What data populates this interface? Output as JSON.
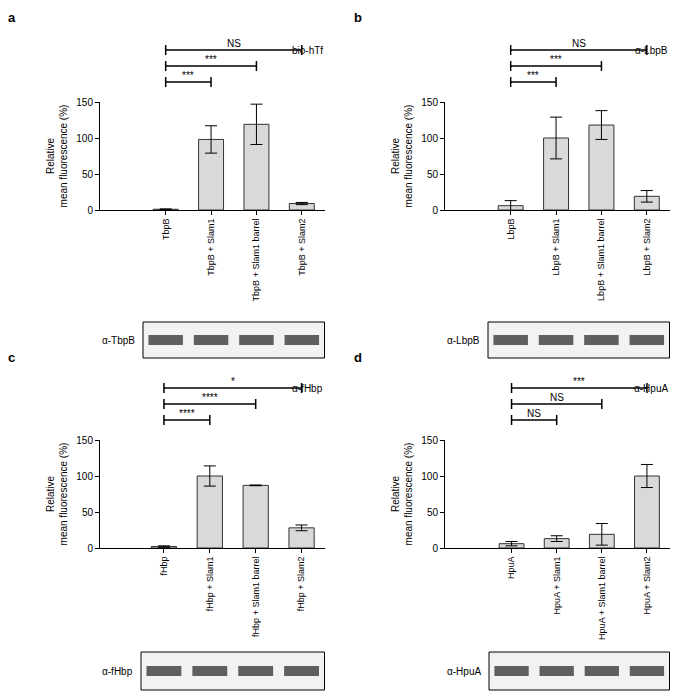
{
  "chart_data": [
    {
      "type": "bar",
      "panel": "a",
      "annotation": "bio-hTf",
      "categories": [
        "TbpB",
        "TbpB + Slam1",
        "TbpB + Slam1 barrel",
        "TbpB + Slam2"
      ],
      "values": [
        1,
        98,
        119,
        9
      ],
      "errors": [
        0.5,
        19,
        28,
        1.5
      ],
      "color": "#d9d9d9",
      "ylim": [
        0,
        150
      ],
      "yticks": [
        0,
        50,
        100,
        150
      ],
      "y_label_lines": [
        "Relative",
        "mean fluorescence (%)"
      ],
      "significance": [
        {
          "from": 0,
          "to": 1,
          "label": "***"
        },
        {
          "from": 0,
          "to": 2,
          "label": "***"
        },
        {
          "from": 0,
          "to": 3,
          "label": "NS"
        }
      ],
      "blot_label": "α-TbpB"
    },
    {
      "type": "bar",
      "panel": "b",
      "annotation": "α-LbpB",
      "categories": [
        "LbpB",
        "LbpB + Slam1",
        "LbpB + Slam1 barrel",
        "LbpB + Slam2"
      ],
      "values": [
        6,
        100,
        118,
        19
      ],
      "errors": [
        7,
        29,
        20,
        8
      ],
      "color": "#d9d9d9",
      "ylim": [
        0,
        150
      ],
      "yticks": [
        0,
        50,
        100,
        150
      ],
      "y_label_lines": [
        "Relative",
        "mean fluorescence (%)"
      ],
      "significance": [
        {
          "from": 0,
          "to": 1,
          "label": "***"
        },
        {
          "from": 0,
          "to": 2,
          "label": "***"
        },
        {
          "from": 0,
          "to": 3,
          "label": "NS"
        }
      ],
      "blot_label": "α-LbpB"
    },
    {
      "type": "bar",
      "panel": "c",
      "annotation": "α-fHbp",
      "categories": [
        "fHbp",
        "fHbp + Slam1",
        "fHbp + Slam1 barrel",
        "fHbp + Slam2"
      ],
      "values": [
        2,
        100,
        87,
        28
      ],
      "errors": [
        1,
        14,
        0.5,
        4
      ],
      "color": "#d9d9d9",
      "ylim": [
        0,
        150
      ],
      "yticks": [
        0,
        50,
        100,
        150
      ],
      "y_label_lines": [
        "Relative",
        "mean fluorescence (%)"
      ],
      "significance": [
        {
          "from": 0,
          "to": 1,
          "label": "****"
        },
        {
          "from": 0,
          "to": 2,
          "label": "****"
        },
        {
          "from": 0,
          "to": 3,
          "label": "*"
        }
      ],
      "blot_label": "α-fHbp"
    },
    {
      "type": "bar",
      "panel": "d",
      "annotation": "α-HpuA",
      "categories": [
        "HpuA",
        "HpuA + Slam1",
        "HpuA + Slam1 barrel",
        "HpuA + Slam2"
      ],
      "values": [
        6,
        13,
        19,
        100
      ],
      "errors": [
        3,
        4,
        15,
        16
      ],
      "color": "#d9d9d9",
      "ylim": [
        0,
        150
      ],
      "yticks": [
        0,
        50,
        100,
        150
      ],
      "y_label_lines": [
        "Relative",
        "mean fluorescence (%)"
      ],
      "significance": [
        {
          "from": 0,
          "to": 1,
          "label": "NS"
        },
        {
          "from": 0,
          "to": 2,
          "label": "NS"
        },
        {
          "from": 0,
          "to": 3,
          "label": "***"
        }
      ],
      "blot_label": "α-HpuA"
    }
  ]
}
